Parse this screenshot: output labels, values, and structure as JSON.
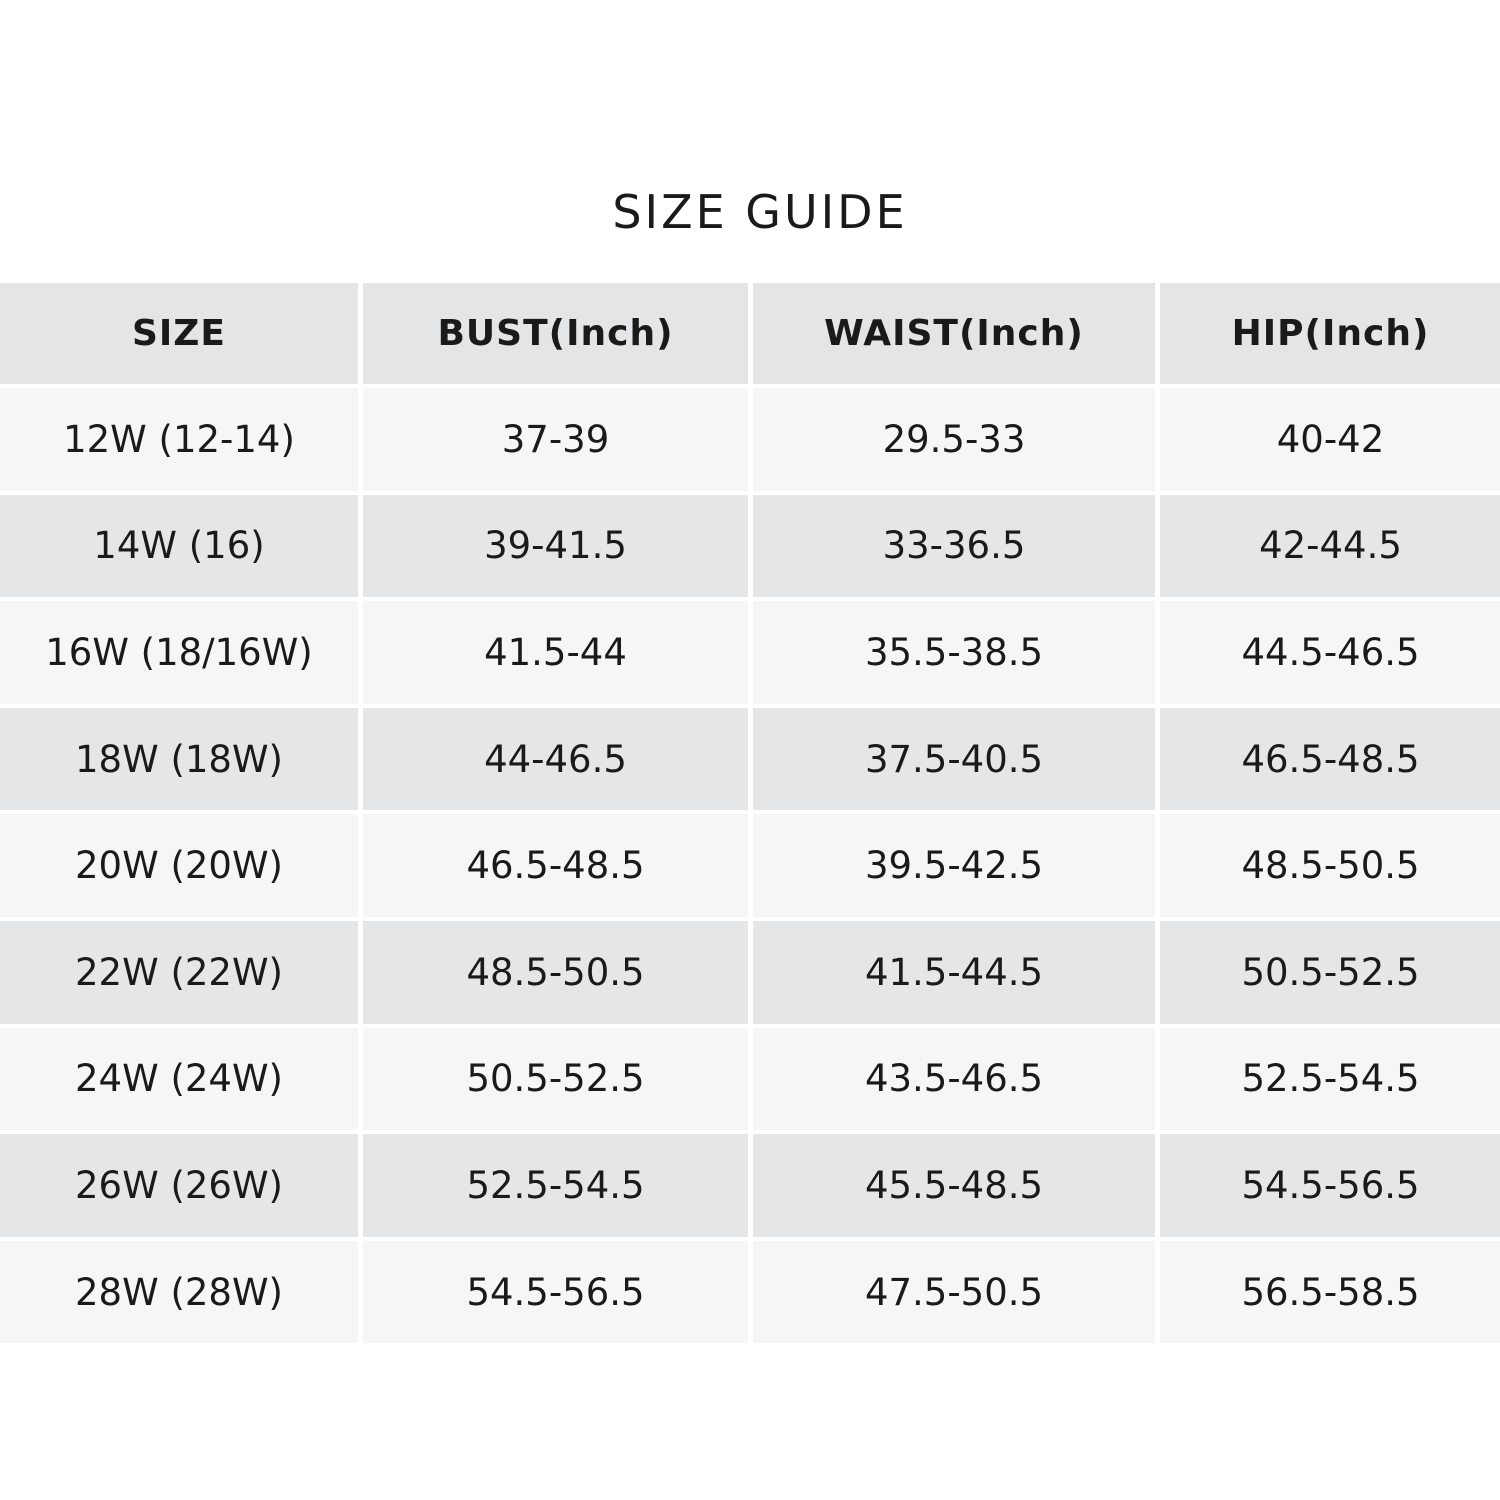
{
  "title": "SIZE GUIDE",
  "columns": [
    "SIZE",
    "BUST(Inch)",
    "WAIST(Inch)",
    "HIP(Inch)"
  ],
  "rows": [
    [
      "12W (12-14)",
      "37-39",
      "29.5-33",
      "40-42"
    ],
    [
      "14W (16)",
      "39-41.5",
      "33-36.5",
      "42-44.5"
    ],
    [
      "16W (18/16W)",
      "41.5-44",
      "35.5-38.5",
      "44.5-46.5"
    ],
    [
      "18W (18W)",
      "44-46.5",
      "37.5-40.5",
      "46.5-48.5"
    ],
    [
      "20W (20W)",
      "46.5-48.5",
      "39.5-42.5",
      "48.5-50.5"
    ],
    [
      "22W (22W)",
      "48.5-50.5",
      "41.5-44.5",
      "50.5-52.5"
    ],
    [
      "24W (24W)",
      "50.5-52.5",
      "43.5-46.5",
      "52.5-54.5"
    ],
    [
      "26W (26W)",
      "52.5-54.5",
      "45.5-48.5",
      "54.5-56.5"
    ],
    [
      "28W (28W)",
      "54.5-56.5",
      "47.5-50.5",
      "56.5-58.5"
    ]
  ],
  "colors": {
    "header_bg": "#e4e5e7",
    "row_light": "#f6f6f6",
    "row_dark": "#e5e6e8",
    "text": "#1a1a1a"
  }
}
